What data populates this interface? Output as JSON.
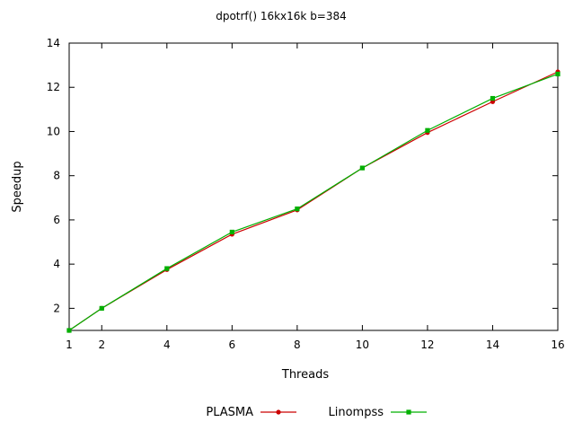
{
  "chart_data": {
    "type": "line",
    "title": "dpotrf() 16kx16k b=384",
    "xlabel": "Threads",
    "ylabel": "Speedup",
    "x": [
      1,
      2,
      4,
      6,
      8,
      10,
      12,
      14,
      16
    ],
    "xticks": [
      "1",
      "2",
      "4",
      "6",
      "8",
      "10",
      "12",
      "14",
      "16"
    ],
    "yticks": [
      "2",
      "4",
      "6",
      "8",
      "10",
      "12",
      "14"
    ],
    "xlim": [
      1,
      16
    ],
    "ylim": [
      1,
      14
    ],
    "grid": false,
    "legend_position": "bottom",
    "series": [
      {
        "name": "PLASMA",
        "color": "#cc0000",
        "values": [
          1.0,
          2.0,
          3.75,
          5.35,
          6.45,
          8.35,
          9.95,
          11.35,
          12.7
        ]
      },
      {
        "name": "Linompss",
        "color": "#00b000",
        "values": [
          1.0,
          2.0,
          3.8,
          5.45,
          6.5,
          8.35,
          10.05,
          11.5,
          12.6
        ]
      }
    ]
  }
}
